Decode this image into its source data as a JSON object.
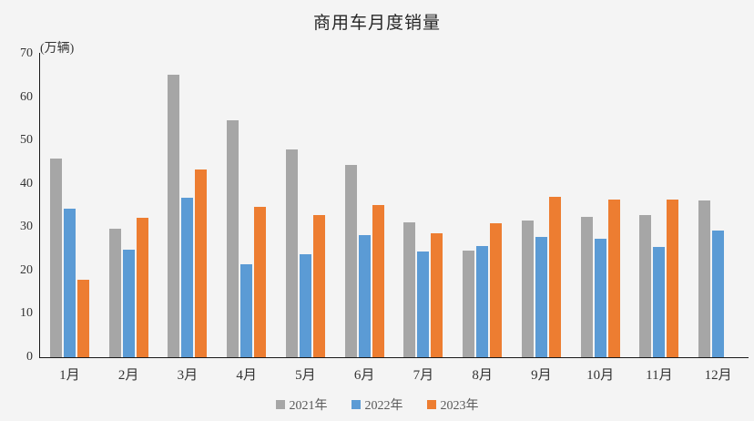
{
  "chart_data": {
    "type": "bar",
    "title": "商用车月度销量",
    "ylabel": "(万辆)",
    "xlabel": "",
    "categories": [
      "1月",
      "2月",
      "3月",
      "4月",
      "5月",
      "6月",
      "7月",
      "8月",
      "9月",
      "10月",
      "11月",
      "12月"
    ],
    "series": [
      {
        "name": "2021年",
        "color": "#a6a6a6",
        "values": [
          45.8,
          29.7,
          65.2,
          54.7,
          47.9,
          44.3,
          31.2,
          24.7,
          31.6,
          32.4,
          32.8,
          36.2
        ]
      },
      {
        "name": "2022年",
        "color": "#5b9bd5",
        "values": [
          34.2,
          24.8,
          36.8,
          21.4,
          23.8,
          28.1,
          24.4,
          25.6,
          27.8,
          27.3,
          25.4,
          29.2
        ]
      },
      {
        "name": "2023年",
        "color": "#ed7d31",
        "values": [
          17.9,
          32.2,
          43.3,
          34.6,
          32.7,
          35.2,
          28.6,
          31.0,
          37.1,
          36.4,
          36.3,
          null
        ]
      }
    ],
    "ylim": [
      0,
      70
    ],
    "y_ticks": [
      0,
      10,
      20,
      30,
      40,
      50,
      60,
      70
    ],
    "grid": false,
    "legend_position": "bottom",
    "background_color": "#f4f4f4",
    "axis_color": "#1a1a1a"
  }
}
